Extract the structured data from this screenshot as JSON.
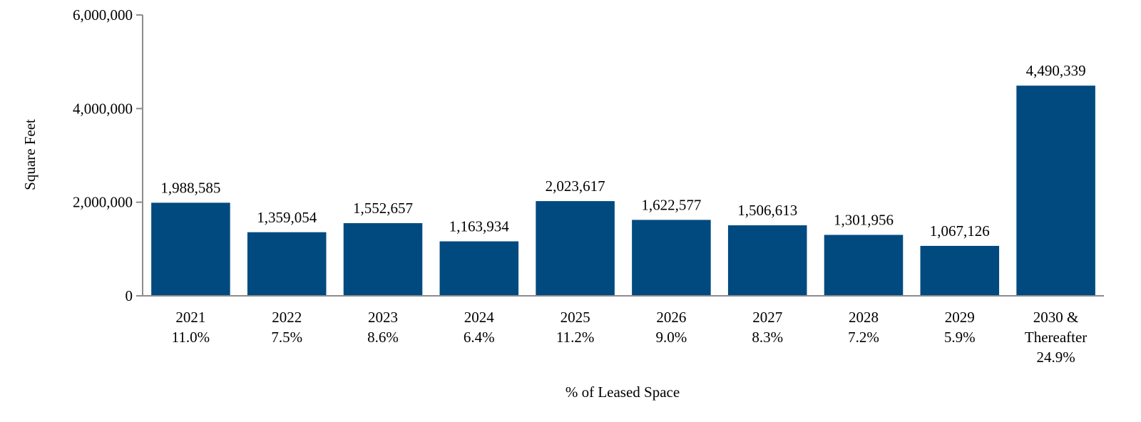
{
  "chart_data": {
    "type": "bar",
    "title": "",
    "xlabel": "% of Leased Space",
    "ylabel": "Square Feet",
    "ylim": [
      0,
      6000000
    ],
    "yticks": [
      0,
      2000000,
      4000000,
      6000000
    ],
    "ytick_labels": [
      "0",
      "2,000,000",
      "4,000,000",
      "6,000,000"
    ],
    "grid": false,
    "legend": "none",
    "bar_color": "#004a7f",
    "categories": [
      [
        "2021",
        "11.0%"
      ],
      [
        "2022",
        "7.5%"
      ],
      [
        "2023",
        "8.6%"
      ],
      [
        "2024",
        "6.4%"
      ],
      [
        "2025",
        "11.2%"
      ],
      [
        "2026",
        "9.0%"
      ],
      [
        "2027",
        "8.3%"
      ],
      [
        "2028",
        "7.2%"
      ],
      [
        "2029",
        "5.9%"
      ],
      [
        "2030 &",
        "Thereafter",
        "24.9%"
      ]
    ],
    "values": [
      1988585,
      1359054,
      1552657,
      1163934,
      2023617,
      1622577,
      1506613,
      1301956,
      1067126,
      4490339
    ],
    "value_labels": [
      "1,988,585",
      "1,359,054",
      "1,552,657",
      "1,163,934",
      "2,023,617",
      "1,622,577",
      "1,506,613",
      "1,301,956",
      "1,067,126",
      "4,490,339"
    ]
  }
}
